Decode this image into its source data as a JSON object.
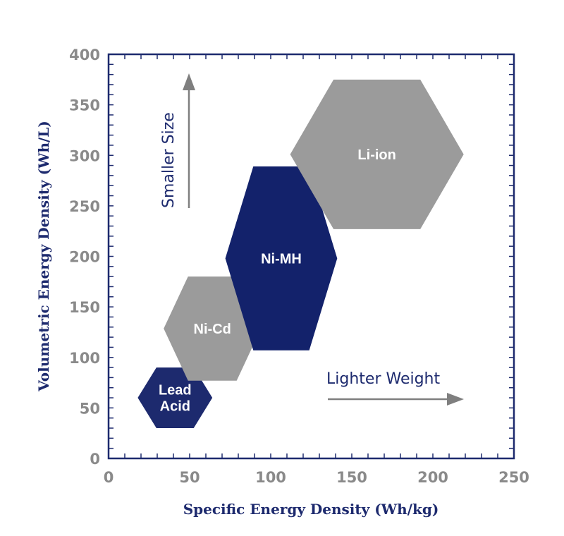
{
  "chart_data": {
    "type": "scatter",
    "title": "",
    "xlabel": "Specific Energy Density (Wh/kg)",
    "ylabel": "Volumetric Energy Density (Wh/L)",
    "xlim": [
      0,
      250
    ],
    "ylim": [
      0,
      400
    ],
    "x_ticks": [
      0,
      50,
      100,
      150,
      200,
      250
    ],
    "y_ticks": [
      0,
      50,
      100,
      150,
      200,
      250,
      300,
      350,
      400
    ],
    "grid": false,
    "regions": [
      {
        "name": "Lead Acid",
        "label_lines": [
          "Lead",
          "Acid"
        ],
        "x_range": [
          18,
          64
        ],
        "y_range": [
          30,
          90
        ],
        "color": "#1d2a6e"
      },
      {
        "name": "Ni-Cd",
        "label_lines": [
          "Ni-Cd"
        ],
        "x_range": [
          34,
          94
        ],
        "y_range": [
          77,
          180
        ],
        "color": "#9b9b9b"
      },
      {
        "name": "Ni-MH",
        "label_lines": [
          "Ni-MH"
        ],
        "x_range": [
          72,
          141
        ],
        "y_range": [
          107,
          289
        ],
        "color": "#13226b"
      },
      {
        "name": "Li-ion",
        "label_lines": [
          "Li-ion"
        ],
        "x_range": [
          112,
          219
        ],
        "y_range": [
          227,
          375
        ],
        "color": "#9b9b9b"
      }
    ],
    "annotations": [
      {
        "text": "Smaller Size",
        "direction": "up"
      },
      {
        "text": "Lighter Weight",
        "direction": "right"
      }
    ]
  },
  "colors": {
    "axis": "#1d2a6e",
    "tick_text": "#8a8a8a",
    "arrow": "#7f7f7f"
  }
}
